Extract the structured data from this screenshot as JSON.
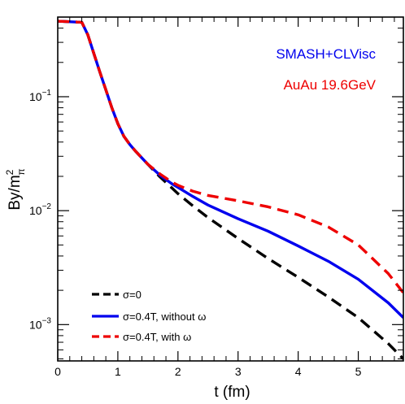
{
  "chart_data": {
    "type": "line",
    "xlabel": "t (fm)",
    "ylabel_main": "By/m",
    "ylabel_sup": "2",
    "ylabel_sub": "π",
    "xlim": [
      0,
      5.75
    ],
    "ylim": [
      0.00048,
      0.5
    ],
    "yscale": "log",
    "x_ticks": [
      {
        "value": 0,
        "label": "0"
      },
      {
        "value": 1,
        "label": "1"
      },
      {
        "value": 2,
        "label": "2"
      },
      {
        "value": 3,
        "label": "3"
      },
      {
        "value": 4,
        "label": "4"
      },
      {
        "value": 5,
        "label": "5"
      }
    ],
    "y_ticks": [
      {
        "value": 0.001,
        "base": "10",
        "exp": "−3"
      },
      {
        "value": 0.01,
        "base": "10",
        "exp": "−2"
      },
      {
        "value": 0.1,
        "base": "10",
        "exp": "−1"
      }
    ],
    "annotations": [
      {
        "text": "SMASH+CLVisc",
        "color": "#0000ee"
      },
      {
        "text": "AuAu 19.6GeV",
        "color": "#ee0000"
      }
    ],
    "series": [
      {
        "name": "σ=0",
        "color": "#000000",
        "style": "dashed",
        "x": [
          0.0,
          0.4,
          0.5,
          0.6,
          0.7,
          0.8,
          0.9,
          1.0,
          1.1,
          1.2,
          1.3,
          1.5,
          1.7,
          1.9,
          2.0,
          2.25,
          2.5,
          3.0,
          3.5,
          4.0,
          4.5,
          5.0,
          5.5,
          5.75
        ],
        "y": [
          0.46,
          0.45,
          0.35,
          0.24,
          0.165,
          0.115,
          0.08,
          0.058,
          0.045,
          0.038,
          0.033,
          0.0255,
          0.0198,
          0.0158,
          0.0141,
          0.011,
          0.0087,
          0.0057,
          0.0038,
          0.0026,
          0.00175,
          0.00115,
          0.00068,
          0.0005
        ]
      },
      {
        "name": "σ=0.4T, without ω",
        "color": "#0000ee",
        "style": "solid",
        "x": [
          0.0,
          0.4,
          0.5,
          0.6,
          0.7,
          0.8,
          0.9,
          1.0,
          1.1,
          1.2,
          1.3,
          1.5,
          1.7,
          1.9,
          2.0,
          2.25,
          2.5,
          3.0,
          3.5,
          4.0,
          4.5,
          5.0,
          5.5,
          5.75
        ],
        "y": [
          0.46,
          0.45,
          0.35,
          0.24,
          0.165,
          0.115,
          0.08,
          0.058,
          0.045,
          0.038,
          0.033,
          0.0255,
          0.0205,
          0.0172,
          0.016,
          0.0133,
          0.0112,
          0.0085,
          0.0066,
          0.0049,
          0.0036,
          0.0025,
          0.00155,
          0.00115
        ]
      },
      {
        "name": "σ=0.4T, with ω",
        "color": "#ee0000",
        "style": "dashed",
        "x": [
          0.0,
          0.4,
          0.5,
          0.6,
          0.7,
          0.8,
          0.9,
          1.0,
          1.1,
          1.2,
          1.3,
          1.5,
          1.7,
          1.9,
          2.0,
          2.25,
          2.5,
          3.0,
          3.5,
          4.0,
          4.5,
          5.0,
          5.5,
          5.75
        ],
        "y": [
          0.46,
          0.45,
          0.35,
          0.24,
          0.165,
          0.115,
          0.08,
          0.058,
          0.045,
          0.038,
          0.033,
          0.0255,
          0.021,
          0.0178,
          0.0167,
          0.0148,
          0.0136,
          0.0122,
          0.0108,
          0.0092,
          0.0072,
          0.005,
          0.0028,
          0.0019
        ]
      }
    ]
  }
}
